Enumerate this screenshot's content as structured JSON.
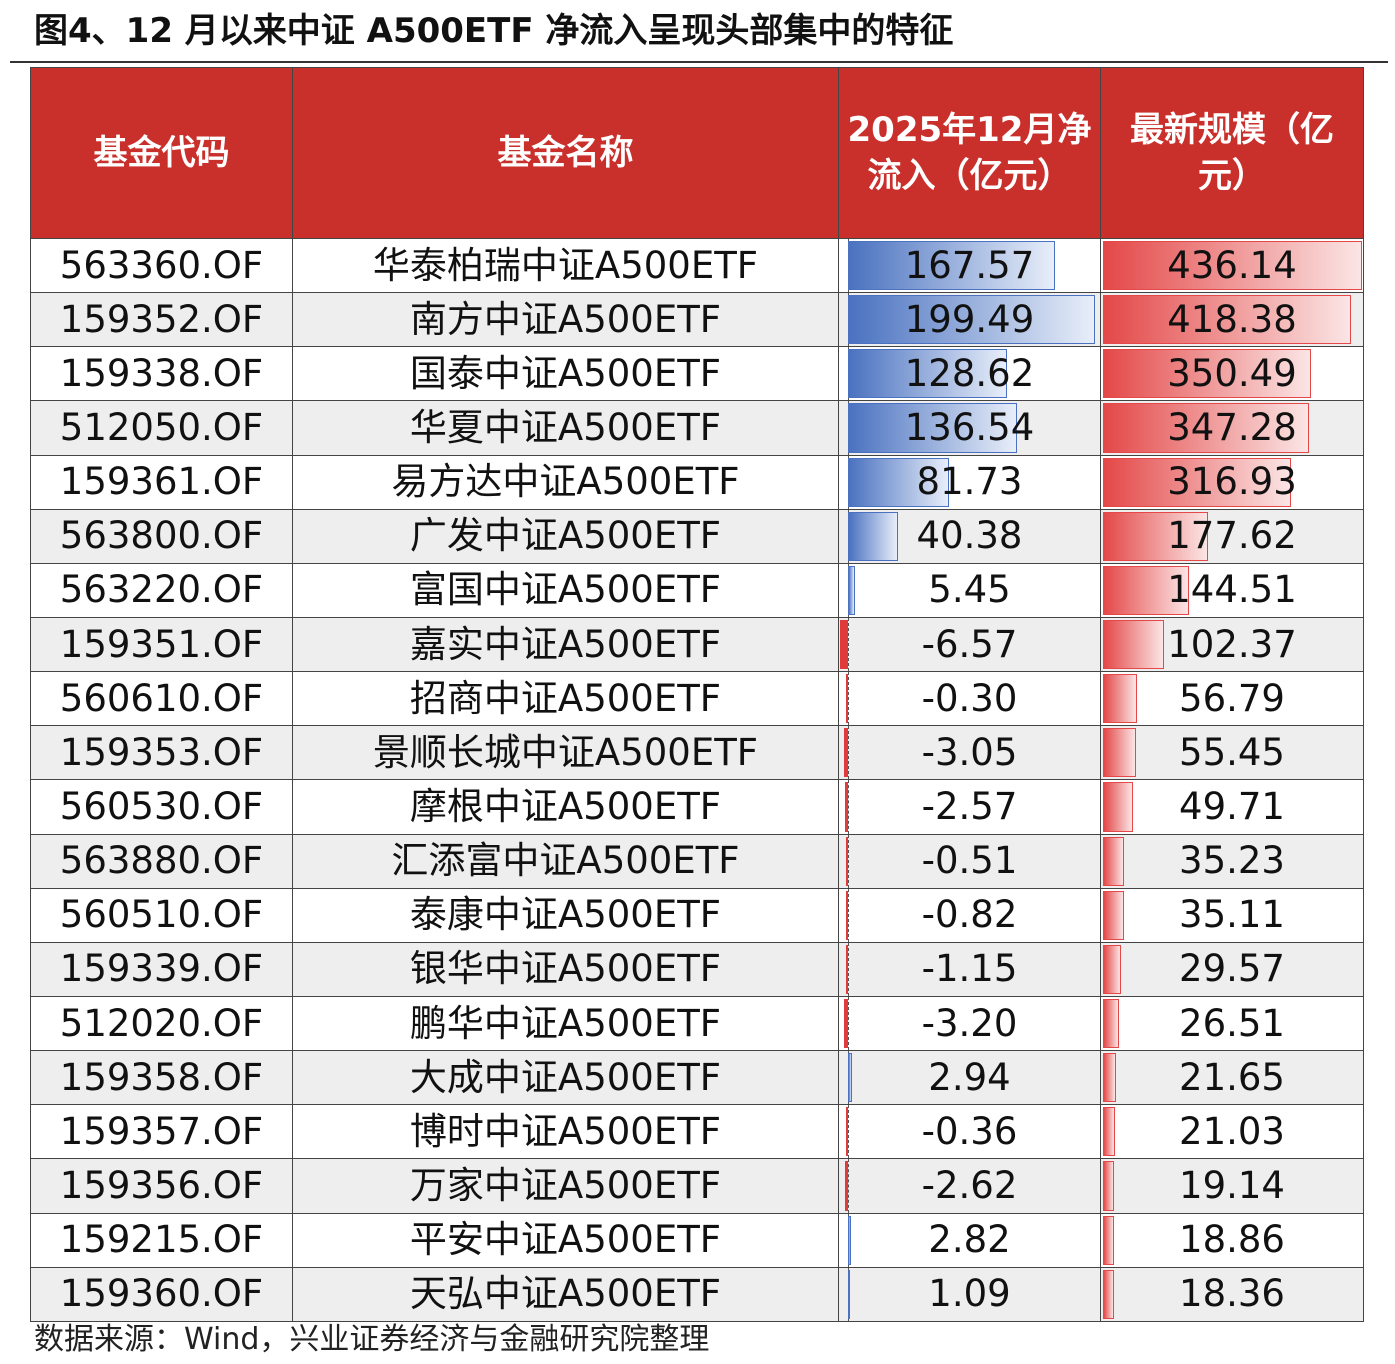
{
  "title": "图4、12 月以来中证 A500ETF 净流入呈现头部集中的特征",
  "headers": {
    "code": "基金代码",
    "name": "基金名称",
    "inflow": "2025年12月净流入（亿元）",
    "scale": "最新规模（亿元）"
  },
  "colors": {
    "header_bg": "#c9302c",
    "inflow_positive_bar": "#4a72c0",
    "inflow_negative_bar": "#e03a3a",
    "scale_bar": "#e44848"
  },
  "rows": [
    {
      "code": "563360.OF",
      "name": "华泰柏瑞中证A500ETF",
      "inflow": "167.57",
      "scale": "436.14"
    },
    {
      "code": "159352.OF",
      "name": "南方中证A500ETF",
      "inflow": "199.49",
      "scale": "418.38"
    },
    {
      "code": "159338.OF",
      "name": "国泰中证A500ETF",
      "inflow": "128.62",
      "scale": "350.49"
    },
    {
      "code": "512050.OF",
      "name": "华夏中证A500ETF",
      "inflow": "136.54",
      "scale": "347.28"
    },
    {
      "code": "159361.OF",
      "name": "易方达中证A500ETF",
      "inflow": "81.73",
      "scale": "316.93"
    },
    {
      "code": "563800.OF",
      "name": "广发中证A500ETF",
      "inflow": "40.38",
      "scale": "177.62"
    },
    {
      "code": "563220.OF",
      "name": "富国中证A500ETF",
      "inflow": "5.45",
      "scale": "144.51"
    },
    {
      "code": "159351.OF",
      "name": "嘉实中证A500ETF",
      "inflow": "-6.57",
      "scale": "102.37"
    },
    {
      "code": "560610.OF",
      "name": "招商中证A500ETF",
      "inflow": "-0.30",
      "scale": "56.79"
    },
    {
      "code": "159353.OF",
      "name": "景顺长城中证A500ETF",
      "inflow": "-3.05",
      "scale": "55.45"
    },
    {
      "code": "560530.OF",
      "name": "摩根中证A500ETF",
      "inflow": "-2.57",
      "scale": "49.71"
    },
    {
      "code": "563880.OF",
      "name": "汇添富中证A500ETF",
      "inflow": "-0.51",
      "scale": "35.23"
    },
    {
      "code": "560510.OF",
      "name": "泰康中证A500ETF",
      "inflow": "-0.82",
      "scale": "35.11"
    },
    {
      "code": "159339.OF",
      "name": "银华中证A500ETF",
      "inflow": "-1.15",
      "scale": "29.57"
    },
    {
      "code": "512020.OF",
      "name": "鹏华中证A500ETF",
      "inflow": "-3.20",
      "scale": "26.51"
    },
    {
      "code": "159358.OF",
      "name": "大成中证A500ETF",
      "inflow": "2.94",
      "scale": "21.65"
    },
    {
      "code": "159357.OF",
      "name": "博时中证A500ETF",
      "inflow": "-0.36",
      "scale": "21.03"
    },
    {
      "code": "159356.OF",
      "name": "万家中证A500ETF",
      "inflow": "-2.62",
      "scale": "19.14"
    },
    {
      "code": "159215.OF",
      "name": "平安中证A500ETF",
      "inflow": "2.82",
      "scale": "18.86"
    },
    {
      "code": "159360.OF",
      "name": "天弘中证A500ETF",
      "inflow": "1.09",
      "scale": "18.36"
    }
  ],
  "source": "数据来源：Wind，兴业证券经济与金融研究院整理"
}
